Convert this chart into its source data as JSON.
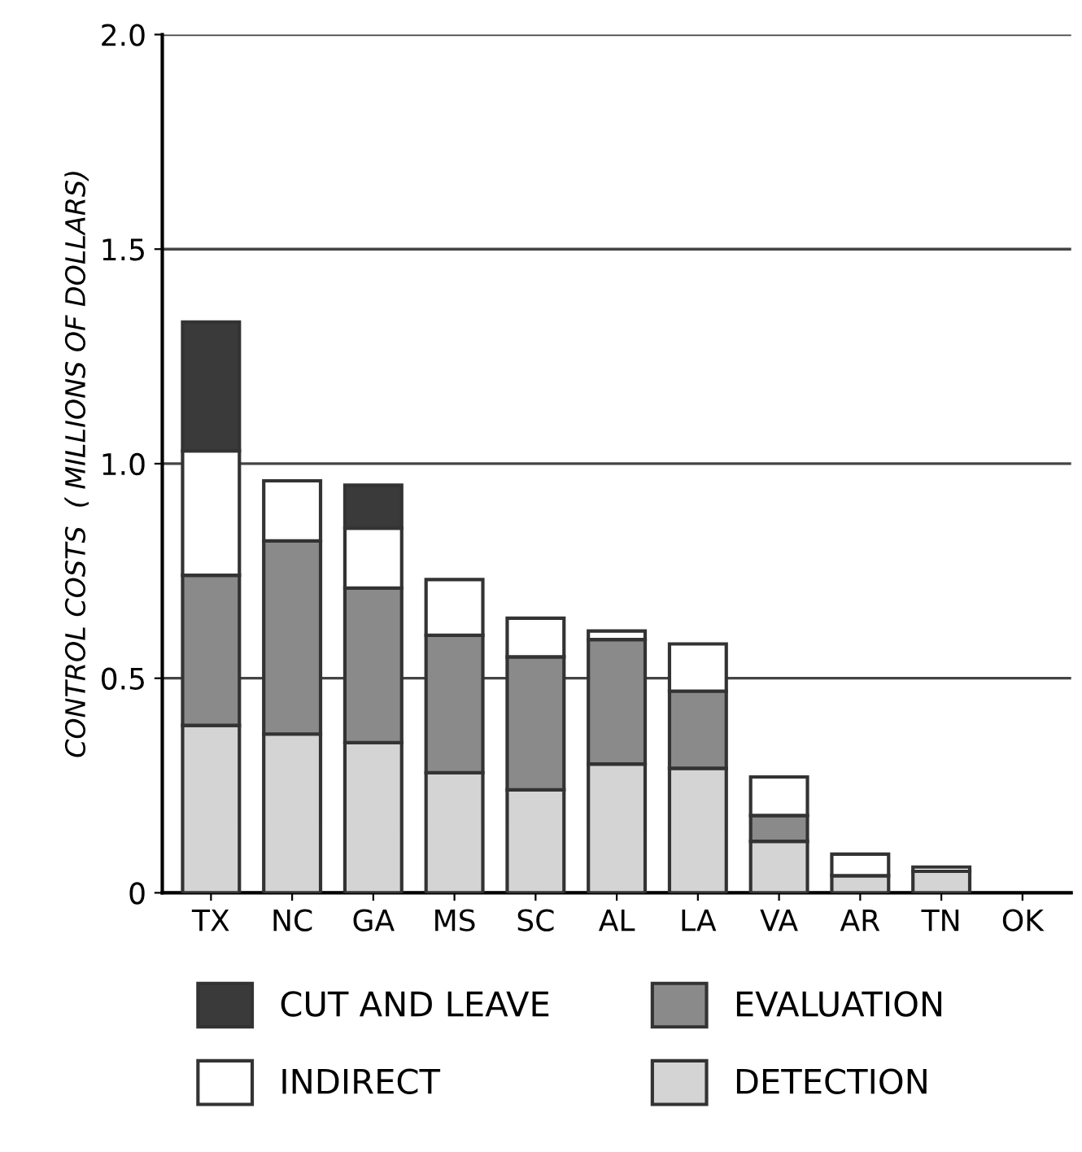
{
  "chart_data": {
    "type": "bar",
    "stacked": true,
    "ylabel": "CONTROL COSTS  ( MILLIONS OF DOLLARS)",
    "categories": [
      "TX",
      "NC",
      "GA",
      "MS",
      "SC",
      "AL",
      "LA",
      "VA",
      "AR",
      "TN",
      "OK"
    ],
    "series": [
      {
        "name": "DETECTION",
        "color": "#d4d4d4",
        "values": [
          0.39,
          0.37,
          0.35,
          0.28,
          0.24,
          0.3,
          0.29,
          0.12,
          0.04,
          0.05,
          0
        ]
      },
      {
        "name": "EVALUATION",
        "color": "#8a8a8a",
        "values": [
          0.35,
          0.45,
          0.36,
          0.32,
          0.31,
          0.29,
          0.18,
          0.06,
          0,
          0,
          0
        ]
      },
      {
        "name": "INDIRECT",
        "color": "#ffffff",
        "values": [
          0.29,
          0.14,
          0.14,
          0.13,
          0.09,
          0.02,
          0.11,
          0.09,
          0.05,
          0.01,
          0
        ]
      },
      {
        "name": "CUT AND LEAVE",
        "color": "#3a3a3a",
        "values": [
          0.3,
          0,
          0.1,
          0,
          0,
          0,
          0,
          0,
          0,
          0,
          0
        ]
      }
    ],
    "ylim": [
      0,
      2.0
    ],
    "yticks": [
      0,
      {
        "value": 0.5,
        "label": "0.5"
      },
      {
        "value": 1.0,
        "label": "1.0"
      },
      {
        "value": 1.5,
        "label": "1.5"
      },
      {
        "value": 2.0,
        "label": "2.0"
      }
    ],
    "grid": "y",
    "legend": "bottom"
  }
}
